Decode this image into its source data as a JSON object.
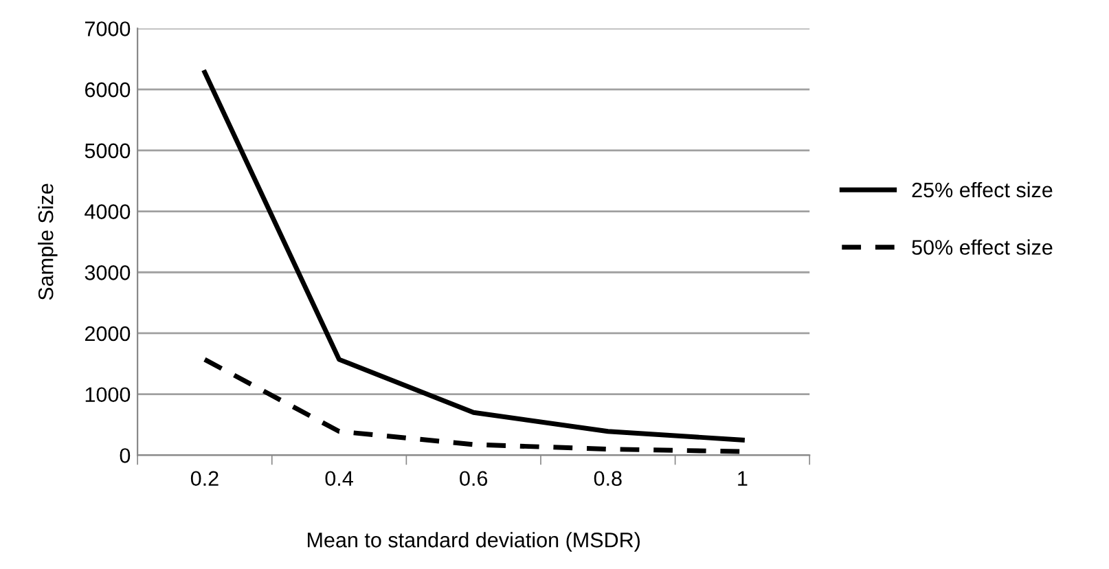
{
  "chart_data": {
    "type": "line",
    "xlabel": "Mean to standard deviation (MSDR)",
    "ylabel": "Sample Size",
    "categories": [
      "0.2",
      "0.4",
      "0.6",
      "0.8",
      "1"
    ],
    "series": [
      {
        "name": "25% effect size",
        "color": "#000000",
        "values": [
          6280,
          1570,
          700,
          390,
          250
        ],
        "line_style": "solid"
      },
      {
        "name": "50% effect size",
        "color": "#000000",
        "values": [
          1570,
          390,
          175,
          100,
          60
        ],
        "line_style": "dashed"
      }
    ],
    "ylim": [
      0,
      7000
    ],
    "yticks": [
      0,
      1000,
      2000,
      3000,
      4000,
      5000,
      6000,
      7000
    ],
    "grid": "y",
    "legend": "right",
    "marker": "none"
  }
}
